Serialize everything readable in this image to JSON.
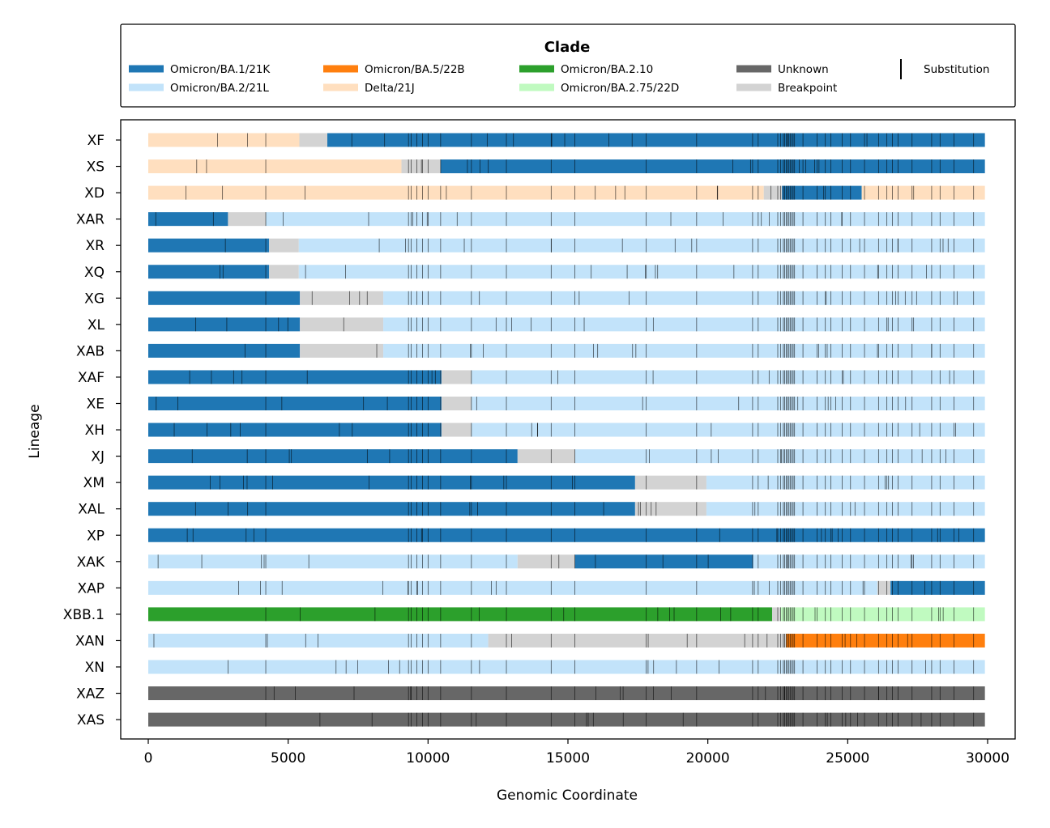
{
  "chart_data": {
    "type": "bar",
    "orientation": "horizontal",
    "xlabel": "Genomic Coordinate",
    "ylabel": "Lineage",
    "xlim": [
      -1000,
      31000
    ],
    "xticks": [
      0,
      5000,
      10000,
      15000,
      20000,
      25000,
      30000
    ],
    "genome_end": 29903,
    "legend": {
      "title": "Clade",
      "position": "top",
      "entries": [
        {
          "label": "Omicron/BA.1/21K",
          "color": "#1f77b4",
          "kind": "patch"
        },
        {
          "label": "Omicron/BA.2/21L",
          "color": "#c2e3fa",
          "kind": "patch"
        },
        {
          "label": "Omicron/BA.5/22B",
          "color": "#ff7f0e",
          "kind": "patch"
        },
        {
          "label": "Delta/21J",
          "color": "#ffdfbf",
          "kind": "patch"
        },
        {
          "label": "Omicron/BA.2.10",
          "color": "#2ca02c",
          "kind": "patch"
        },
        {
          "label": "Omicron/BA.2.75/22D",
          "color": "#c0fac0",
          "kind": "patch"
        },
        {
          "label": "Unknown",
          "color": "#676767",
          "kind": "patch"
        },
        {
          "label": "Breakpoint",
          "color": "#d3d3d3",
          "kind": "patch"
        },
        {
          "label": "Substitution",
          "color": "#000000",
          "kind": "line"
        }
      ]
    },
    "lineages": [
      {
        "name": "XF",
        "segments": [
          {
            "start": 0,
            "end": 5400,
            "clade": "Delta/21J"
          },
          {
            "start": 5400,
            "end": 6400,
            "clade": "Breakpoint"
          },
          {
            "start": 6400,
            "end": 29903,
            "clade": "Omicron/BA.1/21K"
          }
        ]
      },
      {
        "name": "XS",
        "segments": [
          {
            "start": 0,
            "end": 9050,
            "clade": "Delta/21J"
          },
          {
            "start": 9050,
            "end": 10450,
            "clade": "Breakpoint"
          },
          {
            "start": 10450,
            "end": 29903,
            "clade": "Omicron/BA.1/21K"
          }
        ]
      },
      {
        "name": "XD",
        "segments": [
          {
            "start": 0,
            "end": 22000,
            "clade": "Delta/21J"
          },
          {
            "start": 22000,
            "end": 22650,
            "clade": "Breakpoint"
          },
          {
            "start": 22650,
            "end": 25500,
            "clade": "Omicron/BA.1/21K"
          },
          {
            "start": 25500,
            "end": 29903,
            "clade": "Delta/21J"
          }
        ]
      },
      {
        "name": "XAR",
        "segments": [
          {
            "start": 0,
            "end": 2850,
            "clade": "Omicron/BA.1/21K"
          },
          {
            "start": 2850,
            "end": 4200,
            "clade": "Breakpoint"
          },
          {
            "start": 4200,
            "end": 29903,
            "clade": "Omicron/BA.2/21L"
          }
        ]
      },
      {
        "name": "XR",
        "segments": [
          {
            "start": 0,
            "end": 4320,
            "clade": "Omicron/BA.1/21K"
          },
          {
            "start": 4320,
            "end": 5380,
            "clade": "Breakpoint"
          },
          {
            "start": 5380,
            "end": 29903,
            "clade": "Omicron/BA.2/21L"
          }
        ]
      },
      {
        "name": "XQ",
        "segments": [
          {
            "start": 0,
            "end": 4320,
            "clade": "Omicron/BA.1/21K"
          },
          {
            "start": 4320,
            "end": 5380,
            "clade": "Breakpoint"
          },
          {
            "start": 5380,
            "end": 29903,
            "clade": "Omicron/BA.2/21L"
          }
        ]
      },
      {
        "name": "XG",
        "segments": [
          {
            "start": 0,
            "end": 5420,
            "clade": "Omicron/BA.1/21K"
          },
          {
            "start": 5420,
            "end": 8400,
            "clade": "Breakpoint"
          },
          {
            "start": 8400,
            "end": 29903,
            "clade": "Omicron/BA.2/21L"
          }
        ]
      },
      {
        "name": "XL",
        "segments": [
          {
            "start": 0,
            "end": 5420,
            "clade": "Omicron/BA.1/21K"
          },
          {
            "start": 5420,
            "end": 8400,
            "clade": "Breakpoint"
          },
          {
            "start": 8400,
            "end": 29903,
            "clade": "Omicron/BA.2/21L"
          }
        ]
      },
      {
        "name": "XAB",
        "segments": [
          {
            "start": 0,
            "end": 5420,
            "clade": "Omicron/BA.1/21K"
          },
          {
            "start": 5420,
            "end": 8400,
            "clade": "Breakpoint"
          },
          {
            "start": 8400,
            "end": 29903,
            "clade": "Omicron/BA.2/21L"
          }
        ]
      },
      {
        "name": "XAF",
        "segments": [
          {
            "start": 0,
            "end": 10480,
            "clade": "Omicron/BA.1/21K"
          },
          {
            "start": 10480,
            "end": 11540,
            "clade": "Breakpoint"
          },
          {
            "start": 11540,
            "end": 29903,
            "clade": "Omicron/BA.2/21L"
          }
        ]
      },
      {
        "name": "XE",
        "segments": [
          {
            "start": 0,
            "end": 10480,
            "clade": "Omicron/BA.1/21K"
          },
          {
            "start": 10480,
            "end": 11540,
            "clade": "Breakpoint"
          },
          {
            "start": 11540,
            "end": 29903,
            "clade": "Omicron/BA.2/21L"
          }
        ]
      },
      {
        "name": "XH",
        "segments": [
          {
            "start": 0,
            "end": 10480,
            "clade": "Omicron/BA.1/21K"
          },
          {
            "start": 10480,
            "end": 11540,
            "clade": "Breakpoint"
          },
          {
            "start": 11540,
            "end": 29903,
            "clade": "Omicron/BA.2/21L"
          }
        ]
      },
      {
        "name": "XJ",
        "segments": [
          {
            "start": 0,
            "end": 13200,
            "clade": "Omicron/BA.1/21K"
          },
          {
            "start": 13200,
            "end": 15250,
            "clade": "Breakpoint"
          },
          {
            "start": 15250,
            "end": 29903,
            "clade": "Omicron/BA.2/21L"
          }
        ]
      },
      {
        "name": "XM",
        "segments": [
          {
            "start": 0,
            "end": 17400,
            "clade": "Omicron/BA.1/21K"
          },
          {
            "start": 17400,
            "end": 19950,
            "clade": "Breakpoint"
          },
          {
            "start": 19950,
            "end": 29903,
            "clade": "Omicron/BA.2/21L"
          }
        ]
      },
      {
        "name": "XAL",
        "segments": [
          {
            "start": 0,
            "end": 17400,
            "clade": "Omicron/BA.1/21K"
          },
          {
            "start": 17400,
            "end": 19950,
            "clade": "Breakpoint"
          },
          {
            "start": 19950,
            "end": 29903,
            "clade": "Omicron/BA.2/21L"
          }
        ]
      },
      {
        "name": "XP",
        "segments": [
          {
            "start": 0,
            "end": 29903,
            "clade": "Omicron/BA.1/21K"
          }
        ]
      },
      {
        "name": "XAK",
        "segments": [
          {
            "start": 0,
            "end": 13200,
            "clade": "Omicron/BA.2/21L"
          },
          {
            "start": 13200,
            "end": 15250,
            "clade": "Breakpoint"
          },
          {
            "start": 15250,
            "end": 21620,
            "clade": "Omicron/BA.1/21K"
          },
          {
            "start": 21620,
            "end": 29903,
            "clade": "Omicron/BA.2/21L"
          }
        ]
      },
      {
        "name": "XAP",
        "segments": [
          {
            "start": 0,
            "end": 26060,
            "clade": "Omicron/BA.2/21L"
          },
          {
            "start": 26060,
            "end": 26530,
            "clade": "Breakpoint"
          },
          {
            "start": 26530,
            "end": 29903,
            "clade": "Omicron/BA.1/21K"
          }
        ]
      },
      {
        "name": "XBB.1",
        "segments": [
          {
            "start": 0,
            "end": 22300,
            "clade": "Omicron/BA.2.10"
          },
          {
            "start": 22300,
            "end": 22600,
            "clade": "Breakpoint"
          },
          {
            "start": 22600,
            "end": 29903,
            "clade": "Omicron/BA.2.75/22D"
          }
        ]
      },
      {
        "name": "XAN",
        "segments": [
          {
            "start": 0,
            "end": 12150,
            "clade": "Omicron/BA.2/21L"
          },
          {
            "start": 12150,
            "end": 22800,
            "clade": "Breakpoint"
          },
          {
            "start": 22800,
            "end": 29903,
            "clade": "Omicron/BA.5/22B"
          }
        ]
      },
      {
        "name": "XN",
        "segments": [
          {
            "start": 0,
            "end": 29903,
            "clade": "Omicron/BA.2/21L"
          }
        ]
      },
      {
        "name": "XAZ",
        "segments": [
          {
            "start": 0,
            "end": 29903,
            "clade": "Unknown"
          }
        ]
      },
      {
        "name": "XAS",
        "segments": [
          {
            "start": 0,
            "end": 29903,
            "clade": "Unknown"
          }
        ]
      }
    ]
  }
}
